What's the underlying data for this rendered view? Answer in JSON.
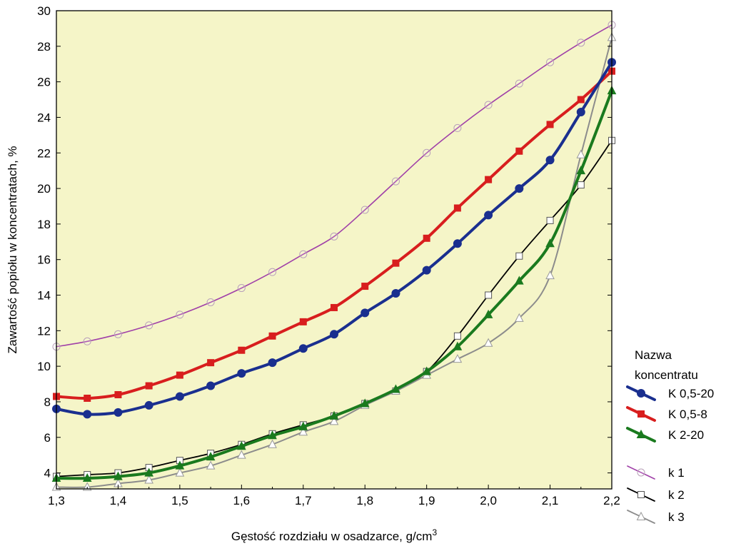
{
  "chart_data": {
    "type": "line",
    "title": "",
    "xlabel": "Gęstość rozdziału w osadzarce,  g/cm",
    "xlabel_sup": "3",
    "ylabel": "Zawartość popiołu w koncentratach,   %",
    "xlim": [
      1.3,
      2.2
    ],
    "ylim": [
      3.1,
      30
    ],
    "x_ticks": [
      1.3,
      1.4,
      1.5,
      1.6,
      1.7,
      1.8,
      1.9,
      2.0,
      2.1,
      2.2
    ],
    "x_tick_labels": [
      "1,3",
      "1,4",
      "1,5",
      "1,6",
      "1,7",
      "1,8",
      "1,9",
      "2,0",
      "2,1",
      "2,2"
    ],
    "y_ticks": [
      4,
      6,
      8,
      10,
      12,
      14,
      16,
      18,
      20,
      22,
      24,
      26,
      28,
      30
    ],
    "y_tick_labels": [
      "4",
      "6",
      "8",
      "10",
      "12",
      "14",
      "16",
      "18",
      "20",
      "22",
      "24",
      "26",
      "28",
      "30"
    ],
    "grid": false,
    "background": "#f5f5c8",
    "legend": {
      "title_line1": "Nazwa",
      "title_line2": "koncentratu",
      "placement": "right"
    },
    "x": [
      1.3,
      1.35,
      1.4,
      1.45,
      1.5,
      1.55,
      1.6,
      1.65,
      1.7,
      1.75,
      1.8,
      1.85,
      1.9,
      1.95,
      2.0,
      2.05,
      2.1,
      2.15,
      2.2
    ],
    "series": [
      {
        "name": "K 0,5-20",
        "color": "#1a2f8f",
        "width": 4,
        "marker": "circle-filled",
        "values": [
          7.6,
          7.3,
          7.4,
          7.8,
          8.3,
          8.9,
          9.6,
          10.2,
          11.0,
          11.8,
          13.0,
          14.1,
          15.4,
          16.9,
          18.5,
          20.0,
          21.6,
          24.3,
          27.1
        ]
      },
      {
        "name": "K 0,5-8",
        "color": "#d81e1e",
        "width": 4,
        "marker": "square-filled",
        "values": [
          8.3,
          8.2,
          8.4,
          8.9,
          9.5,
          10.2,
          10.9,
          11.7,
          12.5,
          13.3,
          14.5,
          15.8,
          17.2,
          18.9,
          20.5,
          22.1,
          23.6,
          25.0,
          26.6
        ]
      },
      {
        "name": "K 2-20",
        "color": "#1a7a1e",
        "width": 4,
        "marker": "triangle-filled",
        "values": [
          3.7,
          3.7,
          3.8,
          4.0,
          4.4,
          4.9,
          5.5,
          6.1,
          6.6,
          7.2,
          7.9,
          8.7,
          9.7,
          11.1,
          12.9,
          14.8,
          16.9,
          21.0,
          25.5
        ]
      },
      {
        "name": "k 1",
        "color": "#a040a8",
        "width": 1.6,
        "marker": "circle-open",
        "values": [
          11.1,
          11.4,
          11.8,
          12.3,
          12.9,
          13.6,
          14.4,
          15.3,
          16.3,
          17.3,
          18.8,
          20.4,
          22.0,
          23.4,
          24.7,
          25.9,
          27.1,
          28.2,
          29.2
        ]
      },
      {
        "name": "k 2",
        "color": "#000000",
        "width": 1.8,
        "marker": "square-open",
        "values": [
          3.8,
          3.9,
          4.0,
          4.3,
          4.7,
          5.1,
          5.6,
          6.2,
          6.7,
          7.2,
          7.9,
          8.6,
          9.7,
          11.7,
          14.0,
          16.2,
          18.2,
          20.2,
          22.7
        ]
      },
      {
        "name": "k 3",
        "color": "#8c8c8c",
        "width": 2,
        "marker": "triangle-open",
        "values": [
          3.2,
          3.2,
          3.4,
          3.6,
          4.0,
          4.4,
          5.0,
          5.6,
          6.3,
          6.9,
          7.8,
          8.6,
          9.5,
          10.4,
          11.3,
          12.7,
          15.1,
          21.9,
          28.5
        ]
      }
    ]
  }
}
